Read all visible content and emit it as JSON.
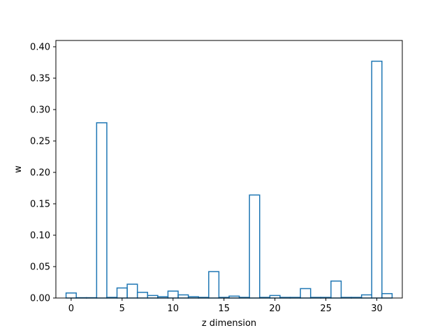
{
  "chart_data": {
    "type": "bar",
    "style": "step-outline",
    "color": "#1f77b4",
    "xlabel": "z dimension",
    "ylabel": "w",
    "xlim": [
      -1.5,
      32.5
    ],
    "ylim": [
      0,
      0.41
    ],
    "x": [
      0,
      1,
      2,
      3,
      4,
      5,
      6,
      7,
      8,
      9,
      10,
      11,
      12,
      13,
      14,
      15,
      16,
      17,
      18,
      19,
      20,
      21,
      22,
      23,
      24,
      25,
      26,
      27,
      28,
      29,
      30,
      31
    ],
    "values": [
      0.008,
      0.0005,
      0.0005,
      0.279,
      0.001,
      0.016,
      0.022,
      0.009,
      0.004,
      0.002,
      0.011,
      0.005,
      0.002,
      0.001,
      0.042,
      0.001,
      0.003,
      0.001,
      0.164,
      0.001,
      0.004,
      0.001,
      0.001,
      0.015,
      0.001,
      0.001,
      0.027,
      0.001,
      0.001,
      0.005,
      0.377,
      0.007
    ],
    "xticks": [
      0,
      5,
      10,
      15,
      20,
      25,
      30
    ],
    "xtick_labels": [
      "0",
      "5",
      "10",
      "15",
      "20",
      "25",
      "30"
    ],
    "yticks": [
      0.0,
      0.05,
      0.1,
      0.15,
      0.2,
      0.25,
      0.3,
      0.35,
      0.4
    ],
    "ytick_labels": [
      "0.00",
      "0.05",
      "0.10",
      "0.15",
      "0.20",
      "0.25",
      "0.30",
      "0.35",
      "0.40"
    ],
    "grid": false
  }
}
